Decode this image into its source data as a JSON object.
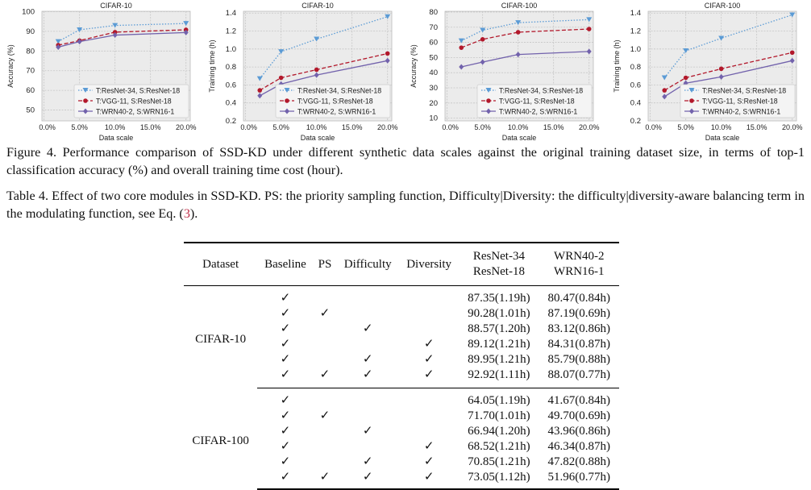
{
  "chart_data": [
    {
      "type": "line",
      "title": "CIFAR-10",
      "xlabel": "Data scale",
      "ylabel": "Accuracy (%)",
      "x": [
        2,
        5,
        10,
        20
      ],
      "xticks": [
        "0.0%",
        "5.0%",
        "10.0%",
        "15.0%",
        "20.0%"
      ],
      "xtick_values": [
        0,
        5,
        10,
        15,
        20
      ],
      "xlim": [
        -0.3,
        20.6
      ],
      "yticks": [
        "50",
        "60",
        "70",
        "80",
        "90",
        "100"
      ],
      "ytick_values": [
        50,
        60,
        70,
        80,
        90,
        100
      ],
      "ylim": [
        44.5,
        100.2
      ],
      "grid": true,
      "legend": "lower-right",
      "series": [
        {
          "name": "T:ResNet-34, S:ResNet-18",
          "values": [
            84.8,
            90.8,
            93.0,
            94.0
          ],
          "color": "#5b9bd5"
        },
        {
          "name": "T:VGG-11, S:ResNet-18",
          "values": [
            83.0,
            85.3,
            89.6,
            90.8
          ],
          "color": "#b2182b"
        },
        {
          "name": "T:WRN40-2, S:WRN16-1",
          "values": [
            82.0,
            84.8,
            88.1,
            89.4
          ],
          "color": "#7262ac"
        }
      ]
    },
    {
      "type": "line",
      "title": "CIFAR-10",
      "xlabel": "Data scale",
      "ylabel": "Training time (h)",
      "x": [
        2,
        5,
        10,
        20
      ],
      "xticks": [
        "0.0%",
        "5.0%",
        "10.0%",
        "15.0%",
        "20.0%"
      ],
      "xtick_values": [
        0,
        5,
        10,
        15,
        20
      ],
      "xlim": [
        -0.3,
        20.6
      ],
      "yticks": [
        "0.2",
        "0.4",
        "0.6",
        "0.8",
        "1.0",
        "1.2",
        "1.4"
      ],
      "ytick_values": [
        0.2,
        0.4,
        0.6,
        0.8,
        1.0,
        1.2,
        1.4
      ],
      "ylim": [
        0.2,
        1.42
      ],
      "grid": true,
      "legend": "lower-right",
      "series": [
        {
          "name": "T:ResNet-34, S:ResNet-18",
          "values": [
            0.67,
            0.97,
            1.11,
            1.36
          ],
          "color": "#5b9bd5"
        },
        {
          "name": "T:VGG-11, S:ResNet-18",
          "values": [
            0.54,
            0.68,
            0.77,
            0.95
          ],
          "color": "#b2182b"
        },
        {
          "name": "T:WRN40-2, S:WRN16-1",
          "values": [
            0.48,
            0.61,
            0.71,
            0.87
          ],
          "color": "#7262ac"
        }
      ]
    },
    {
      "type": "line",
      "title": "CIFAR-100",
      "xlabel": "Data scale",
      "ylabel": "Accuracy (%)",
      "x": [
        2,
        5,
        10,
        20
      ],
      "xticks": [
        "0.0%",
        "5.0%",
        "10.0%",
        "15.0%",
        "20.0%"
      ],
      "xtick_values": [
        0,
        5,
        10,
        15,
        20
      ],
      "xlim": [
        -0.3,
        20.6
      ],
      "yticks": [
        "10",
        "20",
        "30",
        "40",
        "50",
        "60",
        "70",
        "80"
      ],
      "ytick_values": [
        10,
        20,
        30,
        40,
        50,
        60,
        70,
        80
      ],
      "ylim": [
        8.2,
        80.5
      ],
      "grid": true,
      "legend": "lower-right",
      "series": [
        {
          "name": "T:ResNet-34, S:ResNet-18",
          "values": [
            61,
            68,
            73,
            75
          ],
          "color": "#5b9bd5"
        },
        {
          "name": "T:VGG-11, S:ResNet-18",
          "values": [
            56.5,
            62,
            66.7,
            68.8
          ],
          "color": "#b2182b"
        },
        {
          "name": "T:WRN40-2, S:WRN16-1",
          "values": [
            43.8,
            47,
            52,
            54
          ],
          "color": "#7262ac"
        }
      ]
    },
    {
      "type": "line",
      "title": "CIFAR-100",
      "xlabel": "Data scale",
      "ylabel": "Training time (h)",
      "x": [
        2,
        5,
        10,
        20
      ],
      "xticks": [
        "0.0%",
        "5.0%",
        "10.0%",
        "15.0%",
        "20.0%"
      ],
      "xtick_values": [
        0,
        5,
        10,
        15,
        20
      ],
      "xlim": [
        -0.3,
        20.6
      ],
      "yticks": [
        "0.2",
        "0.4",
        "0.6",
        "0.8",
        "1.0",
        "1.2",
        "1.4"
      ],
      "ytick_values": [
        0.2,
        0.4,
        0.6,
        0.8,
        1.0,
        1.2,
        1.4
      ],
      "ylim": [
        0.2,
        1.42
      ],
      "grid": true,
      "legend": "lower-right",
      "series": [
        {
          "name": "T:ResNet-34, S:ResNet-18",
          "values": [
            0.68,
            0.98,
            1.12,
            1.38
          ],
          "color": "#5b9bd5"
        },
        {
          "name": "T:VGG-11, S:ResNet-18",
          "values": [
            0.54,
            0.68,
            0.78,
            0.96
          ],
          "color": "#b2182b"
        },
        {
          "name": "T:WRN40-2, S:WRN16-1",
          "values": [
            0.47,
            0.62,
            0.69,
            0.87
          ],
          "color": "#7262ac"
        }
      ]
    }
  ],
  "figure_caption": "Figure 4.  Performance comparison of SSD-KD under different synthetic data scales against the original training dataset size, in terms of top-1 classification accuracy (%) and overall training time cost (hour).",
  "table_caption": {
    "before": "Table 4.  Effect of two core modules in SSD-KD. PS: the priority sampling function, Difficulty|Diversity: the difficulty|diversity-aware balancing term in the modulating function, see Eq. (",
    "ref": "3",
    "after": ")."
  },
  "table": {
    "headers": {
      "dataset": "Dataset",
      "baseline": "Baseline",
      "ps": "PS",
      "difficulty": "Difficulty",
      "diversity": "Diversity",
      "col1_a": "ResNet-34",
      "col1_b": "ResNet-18",
      "col2_a": "WRN40-2",
      "col2_b": "WRN16-1"
    },
    "check": "✓",
    "groups": [
      {
        "dataset": "CIFAR-10",
        "rows": [
          {
            "b": true,
            "ps": false,
            "dif": false,
            "div": false,
            "r": "87.35(1.19h)",
            "w": "80.47(0.84h)"
          },
          {
            "b": true,
            "ps": true,
            "dif": false,
            "div": false,
            "r": "90.28(1.01h)",
            "w": "87.19(0.69h)"
          },
          {
            "b": true,
            "ps": false,
            "dif": true,
            "div": false,
            "r": "88.57(1.20h)",
            "w": "83.12(0.86h)"
          },
          {
            "b": true,
            "ps": false,
            "dif": false,
            "div": true,
            "r": "89.12(1.21h)",
            "w": "84.31(0.87h)"
          },
          {
            "b": true,
            "ps": false,
            "dif": true,
            "div": true,
            "r": "89.95(1.21h)",
            "w": "85.79(0.88h)"
          },
          {
            "b": true,
            "ps": true,
            "dif": true,
            "div": true,
            "r": "92.92(1.11h)",
            "w": "88.07(0.77h)"
          }
        ]
      },
      {
        "dataset": "CIFAR-100",
        "rows": [
          {
            "b": true,
            "ps": false,
            "dif": false,
            "div": false,
            "r": "64.05(1.19h)",
            "w": "41.67(0.84h)"
          },
          {
            "b": true,
            "ps": true,
            "dif": false,
            "div": false,
            "r": "71.70(1.01h)",
            "w": "49.70(0.69h)"
          },
          {
            "b": true,
            "ps": false,
            "dif": true,
            "div": false,
            "r": "66.94(1.20h)",
            "w": "43.96(0.86h)"
          },
          {
            "b": true,
            "ps": false,
            "dif": false,
            "div": true,
            "r": "68.52(1.21h)",
            "w": "46.34(0.87h)"
          },
          {
            "b": true,
            "ps": false,
            "dif": true,
            "div": true,
            "r": "70.85(1.21h)",
            "w": "47.82(0.88h)"
          },
          {
            "b": true,
            "ps": true,
            "dif": true,
            "div": true,
            "r": "73.05(1.12h)",
            "w": "51.96(0.77h)"
          }
        ]
      }
    ]
  }
}
